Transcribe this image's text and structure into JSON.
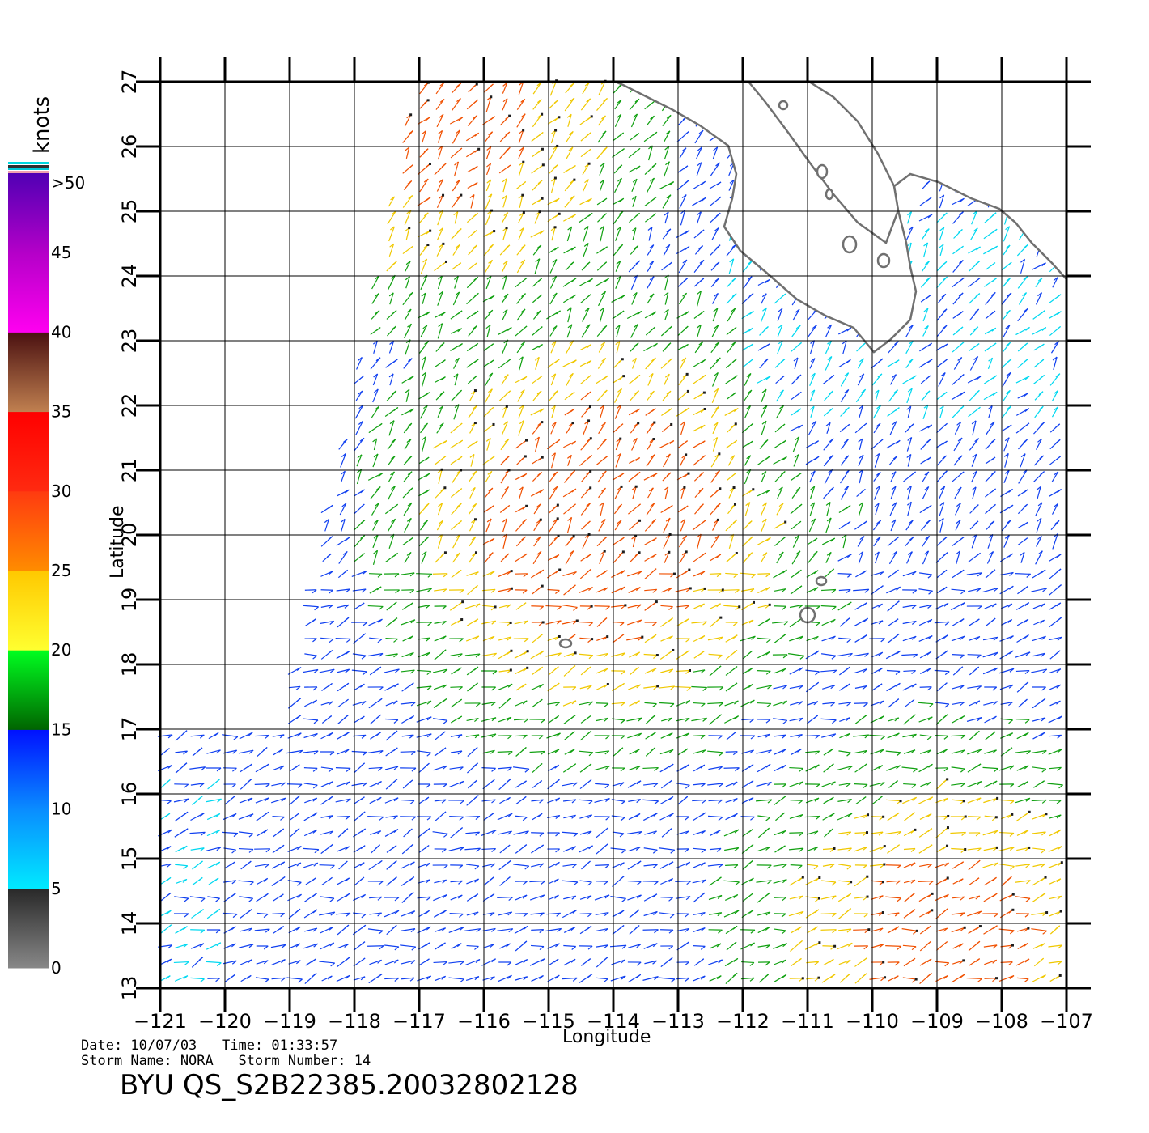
{
  "map": {
    "x_axis_label": "Longitude",
    "y_axis_label": "Latitude",
    "lon_ticks": [
      -121,
      -120,
      -119,
      -118,
      -117,
      -116,
      -115,
      -114,
      -113,
      -112,
      -111,
      -110,
      -109,
      -108,
      -107
    ],
    "lat_ticks": [
      13,
      14,
      15,
      16,
      17,
      18,
      19,
      20,
      21,
      22,
      23,
      24,
      25,
      26,
      27
    ],
    "lon_tick_labels": [
      "−121",
      "−120",
      "−119",
      "−118",
      "−117",
      "−116",
      "−115",
      "−114",
      "−113",
      "−112",
      "−111",
      "−110",
      "−109",
      "−108",
      "−107"
    ],
    "lat_tick_labels": [
      "13",
      "14",
      "15",
      "16",
      "17",
      "18",
      "19",
      "20",
      "21",
      "22",
      "23",
      "24",
      "25",
      "26",
      "27"
    ],
    "lon_range": [
      -121,
      -107
    ],
    "lat_range": [
      13,
      27
    ],
    "grid": true,
    "land_outline_color": "#707070"
  },
  "colorbar": {
    "unit_label": "knots",
    "top_label": ">50",
    "tick_labels": [
      "0",
      "5",
      "10",
      "15",
      "20",
      "25",
      "30",
      "35",
      "40",
      "45"
    ],
    "ticks": [
      0,
      5,
      10,
      15,
      20,
      25,
      30,
      35,
      40,
      45
    ],
    "range": [
      0,
      50
    ],
    "colors": [
      {
        "from": 0,
        "to": 5,
        "top": "#282828",
        "bottom": "#888888"
      },
      {
        "from": 5,
        "to": 10,
        "top": "#0a8cff",
        "bottom": "#00eaff"
      },
      {
        "from": 10,
        "to": 15,
        "top": "#0010ff",
        "bottom": "#0a8cff"
      },
      {
        "from": 15,
        "to": 20,
        "top": "#00ff20",
        "bottom": "#006400"
      },
      {
        "from": 20,
        "to": 25,
        "top": "#ffc800",
        "bottom": "#ffff30"
      },
      {
        "from": 25,
        "to": 30,
        "top": "#ff3a10",
        "bottom": "#ff8c00"
      },
      {
        "from": 30,
        "to": 35,
        "top": "#ff0000",
        "bottom": "#ff2a10"
      },
      {
        "from": 35,
        "to": 40,
        "top": "#4a1010",
        "bottom": "#c08050"
      },
      {
        "from": 40,
        "to": 45,
        "top": "#b400c8",
        "bottom": "#ff00f0"
      },
      {
        "from": 45,
        "to": 50,
        "top": "#5000b4",
        "bottom": "#b400c8"
      }
    ]
  },
  "wind_colors": {
    "calm": "#1e1e1e",
    "light": "#00d8f0",
    "moderate": "#1040f0",
    "fresh": "#10a010",
    "strong": "#f0c800",
    "gale": "#f05000"
  },
  "footer": {
    "date_line": "Date: 10/07/03   Time: 01:33:57",
    "storm_line": "Storm Name: NORA   Storm Number: 14",
    "product": "BYU QS_S2B22385.20032802128"
  }
}
